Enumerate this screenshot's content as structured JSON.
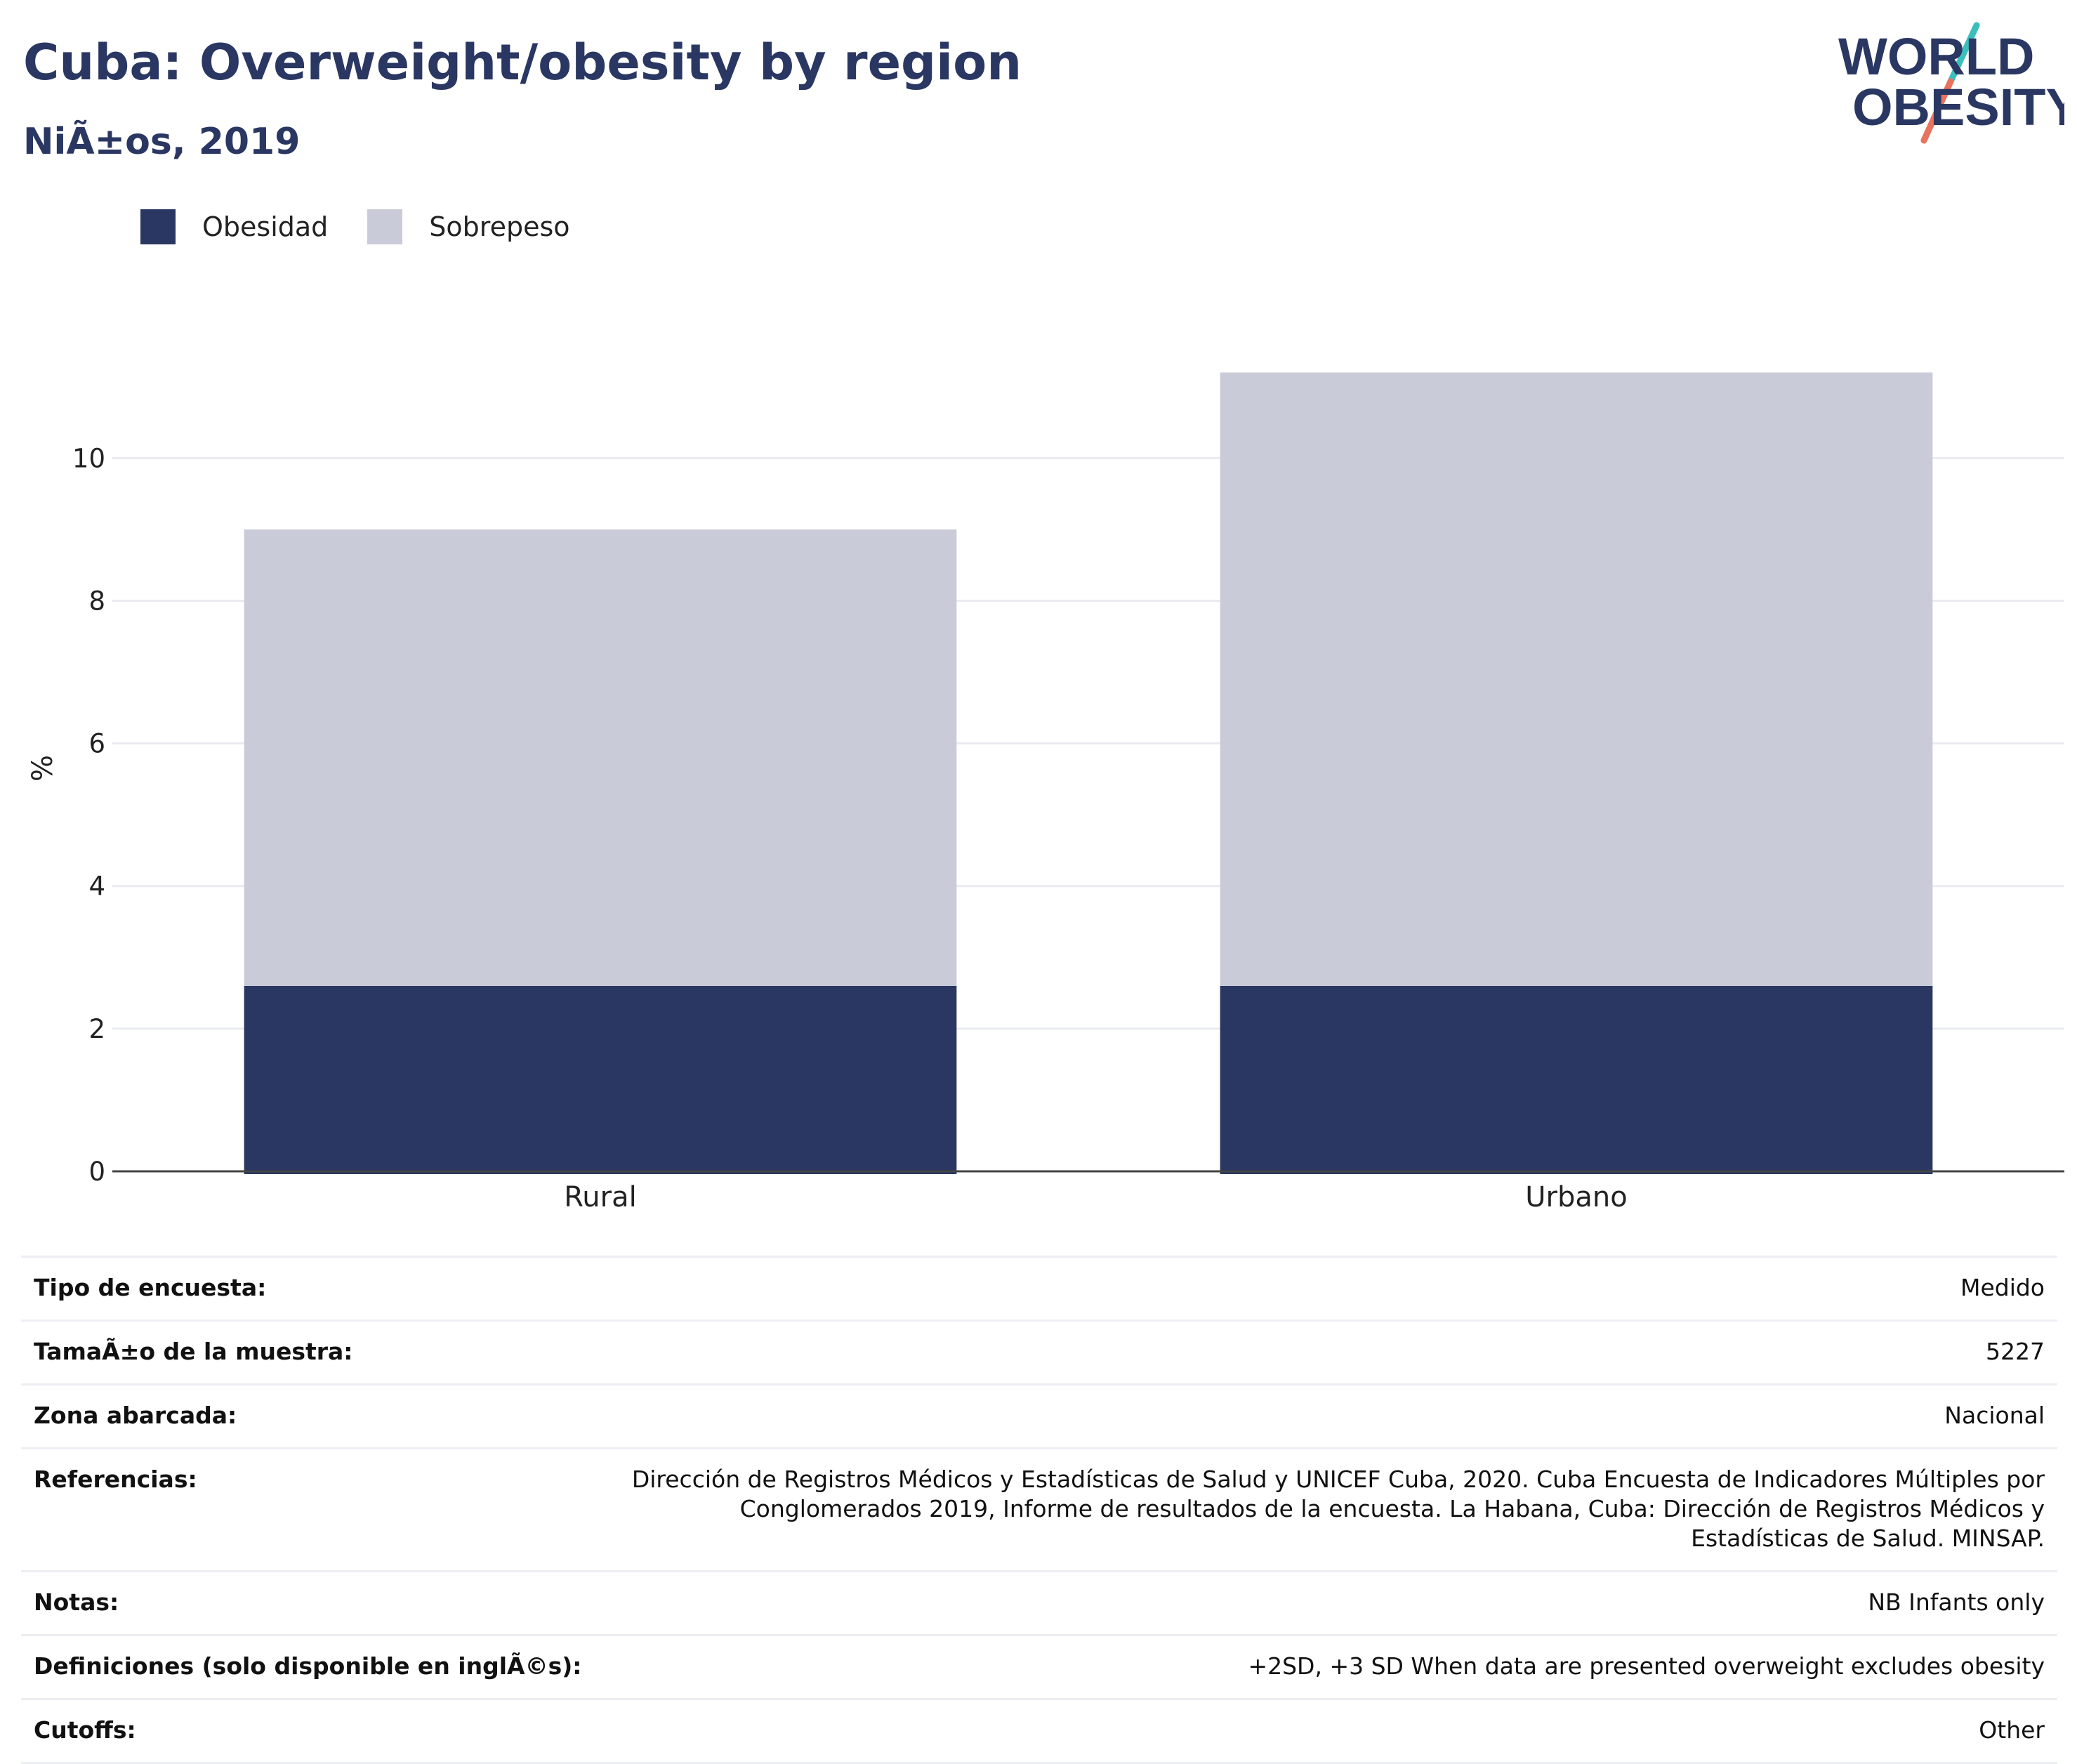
{
  "header": {
    "title": "Cuba: Overweight/obesity by region",
    "subtitle": "NiÃ±os, 2019"
  },
  "logo": {
    "line1": "WORLD",
    "line2": "OBESITY",
    "colors": {
      "text": "#2a3762",
      "slash_top": "#3bbfbd",
      "slash_bottom": "#e8735f"
    }
  },
  "legend": {
    "items": [
      {
        "label": "Obesidad",
        "color": "#2a3762"
      },
      {
        "label": "Sobrepeso",
        "color": "#c9ccd8"
      }
    ]
  },
  "chart_data": {
    "type": "bar",
    "stacked": true,
    "categories": [
      "Rural",
      "Urbano"
    ],
    "series": [
      {
        "name": "Obesidad",
        "values": [
          2.6,
          2.6
        ],
        "color": "#2a3762"
      },
      {
        "name": "Sobrepeso",
        "values": [
          6.4,
          8.6
        ],
        "color": "#c9ccd8"
      }
    ],
    "ylabel": "%",
    "ylim": [
      0,
      11.5
    ],
    "yticks": [
      0,
      2,
      4,
      6,
      8,
      10
    ],
    "grid": true,
    "legend_position": "top-left"
  },
  "info": {
    "rows": [
      {
        "key": "Tipo de encuesta:",
        "value": "Medido"
      },
      {
        "key": "TamaÃ±o de la muestra:",
        "value": "5227"
      },
      {
        "key": "Zona abarcada:",
        "value": "Nacional"
      },
      {
        "key": "Referencias:",
        "value": "Dirección de Registros Médicos y Estadísticas de Salud y UNICEF Cuba, 2020. Cuba Encuesta de Indicadores Múltiples por Conglomerados 2019, Informe de resultados de la encuesta. La Habana, Cuba: Dirección de Registros Médicos y Estadísticas de Salud. MINSAP."
      },
      {
        "key": "Notas:",
        "value": "NB Infants only"
      },
      {
        "key": "Definiciones (solo disponible en inglÃ©s):",
        "value": "+2SD, +3 SD When data are presented overweight excludes obesity"
      },
      {
        "key": "Cutoffs:",
        "value": "Other"
      }
    ]
  }
}
